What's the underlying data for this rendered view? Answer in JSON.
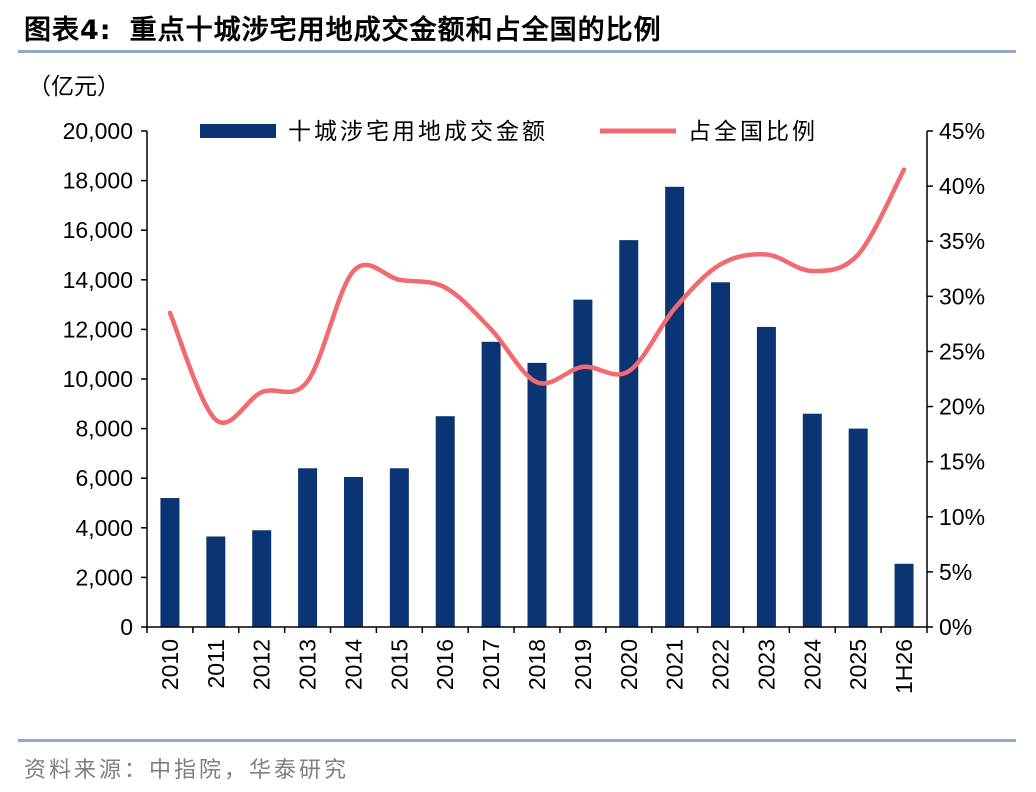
{
  "figure": {
    "label": "图表4:",
    "title": "重点十城涉宅用地成交金额和占全国的比例",
    "source": "资料来源：中指院，华泰研究"
  },
  "colors": {
    "bar": "#0b3474",
    "line": "#f06a6f",
    "accent_rule": "#8ea9c9",
    "source_text": "#7f7f7f"
  },
  "chart_data": {
    "type": "bar+line",
    "unit_label": "（亿元）",
    "categories": [
      "2010",
      "2011",
      "2012",
      "2013",
      "2014",
      "2015",
      "2016",
      "2017",
      "2018",
      "2019",
      "2020",
      "2021",
      "2022",
      "2023",
      "2024",
      "2025",
      "1H26"
    ],
    "series": [
      {
        "name": "十城涉宅用地成交金额",
        "type": "bar",
        "axis": "left",
        "values": [
          5200,
          3650,
          3900,
          6400,
          6050,
          6400,
          8500,
          11500,
          10650,
          13200,
          15600,
          17750,
          13900,
          12100,
          8600,
          8000,
          2550
        ]
      },
      {
        "name": "占全国比例",
        "type": "line",
        "axis": "right",
        "values": [
          28.5,
          18.8,
          21.3,
          22.3,
          32.3,
          31.5,
          30.8,
          27.0,
          22.2,
          23.6,
          23.2,
          28.9,
          32.9,
          33.8,
          32.3,
          33.8,
          41.5
        ]
      }
    ],
    "y_left": {
      "ylim": [
        0,
        20000
      ],
      "ticks": [
        "0",
        "2,000",
        "4,000",
        "6,000",
        "8,000",
        "10,000",
        "12,000",
        "14,000",
        "16,000",
        "18,000",
        "20,000"
      ]
    },
    "y_right": {
      "ylim": [
        0,
        45
      ],
      "ticks": [
        "0%",
        "5%",
        "10%",
        "15%",
        "20%",
        "25%",
        "30%",
        "35%",
        "40%",
        "45%"
      ]
    },
    "legend": {
      "placement": "top-center"
    },
    "grid": false
  }
}
